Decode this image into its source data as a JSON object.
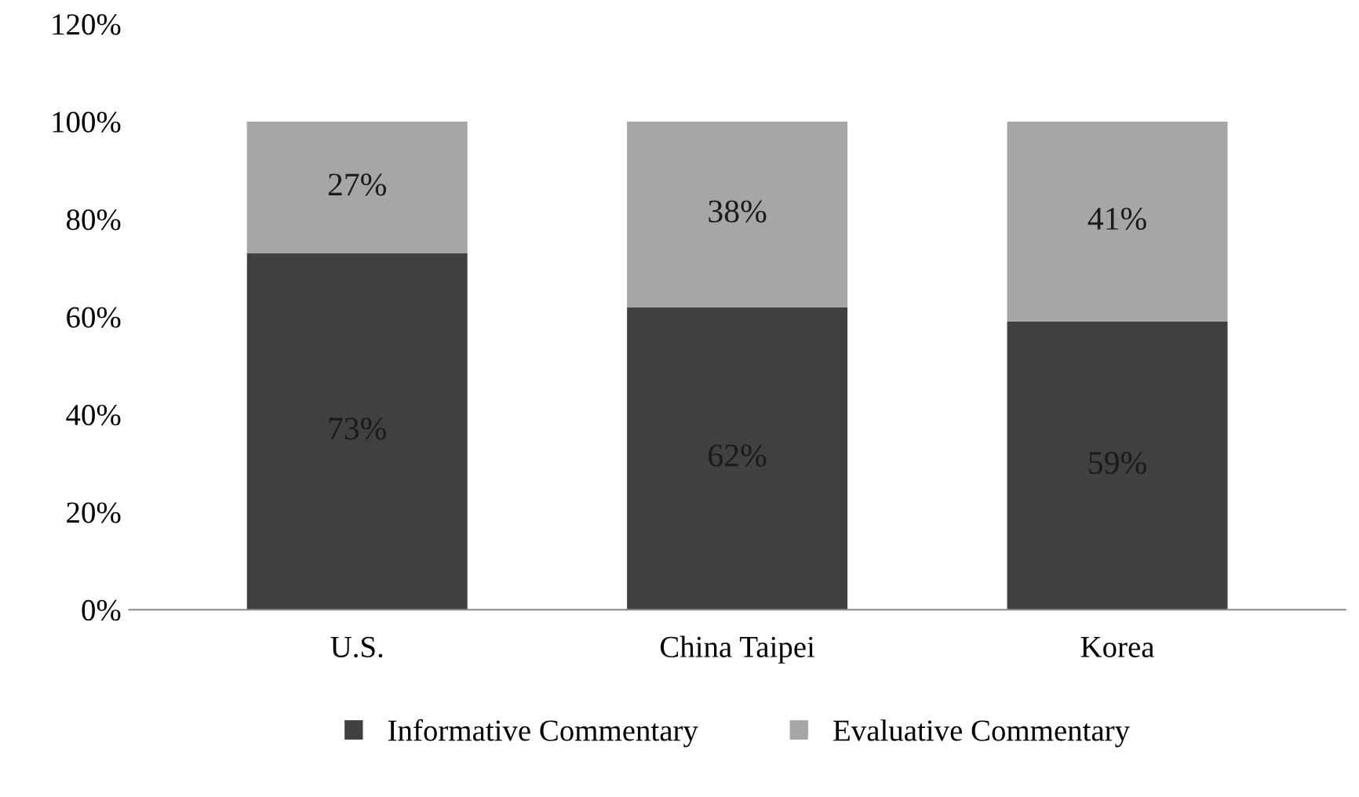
{
  "chart_data": {
    "type": "bar",
    "stacked": true,
    "categories": [
      "U.S.",
      "China Taipei",
      "Korea"
    ],
    "series": [
      {
        "name": "Informative Commentary",
        "color": "#404040",
        "values": [
          73,
          62,
          59
        ],
        "value_labels": [
          "73%",
          "62%",
          "59%"
        ]
      },
      {
        "name": "Evaluative Commentary",
        "color": "#a6a6a6",
        "values": [
          27,
          38,
          41
        ],
        "value_labels": [
          "27%",
          "38%",
          "41%"
        ]
      }
    ],
    "ylim": [
      0,
      120
    ],
    "yticks": [
      {
        "value": 0,
        "label": "0%"
      },
      {
        "value": 20,
        "label": "20%"
      },
      {
        "value": 40,
        "label": "40%"
      },
      {
        "value": 60,
        "label": "60%"
      },
      {
        "value": 80,
        "label": "80%"
      },
      {
        "value": 100,
        "label": "100%"
      },
      {
        "value": 120,
        "label": "120%"
      }
    ],
    "grid": false,
    "legend": "bottom"
  }
}
